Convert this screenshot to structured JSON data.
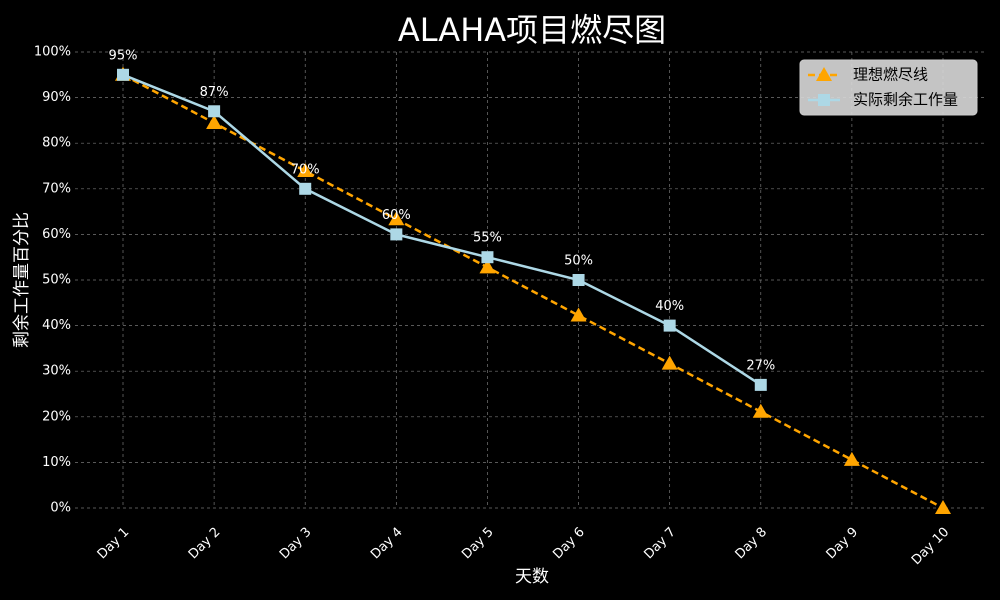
{
  "chart_data": {
    "type": "line",
    "title": "ALAHA项目燃尽图",
    "x_label": "天数",
    "y_label": "剩余工作量百分比",
    "categories": [
      "Day 1",
      "Day 2",
      "Day 3",
      "Day 4",
      "Day 5",
      "Day 6",
      "Day 7",
      "Day 8",
      "Day 9",
      "Day 10"
    ],
    "series": [
      {
        "name": "理想燃尽线",
        "color": "#ffa500",
        "dashed": true,
        "marker": "triangle",
        "values": [
          95,
          84.44,
          73.89,
          63.33,
          52.78,
          42.22,
          31.67,
          21.11,
          10.56,
          0
        ]
      },
      {
        "name": "实际剩余工作量",
        "color": "#add8e6",
        "dashed": false,
        "marker": "square",
        "values": [
          95,
          87,
          70,
          60,
          55,
          50,
          40,
          27,
          null,
          null
        ],
        "value_labels": [
          "95%",
          "87%",
          "70%",
          "60%",
          "55%",
          "50%",
          "40%",
          "27%",
          null,
          null
        ]
      }
    ],
    "ylim": [
      0,
      100
    ],
    "yticks": [
      {
        "value": 0,
        "label": "0%"
      },
      {
        "value": 10,
        "label": "10%"
      },
      {
        "value": 20,
        "label": "20%"
      },
      {
        "value": 30,
        "label": "30%"
      },
      {
        "value": 40,
        "label": "40%"
      },
      {
        "value": 50,
        "label": "50%"
      },
      {
        "value": 60,
        "label": "60%"
      },
      {
        "value": 70,
        "label": "70%"
      },
      {
        "value": 80,
        "label": "80%"
      },
      {
        "value": 90,
        "label": "90%"
      },
      {
        "value": 100,
        "label": "100%"
      }
    ],
    "grid": true,
    "legend": "upper right"
  }
}
